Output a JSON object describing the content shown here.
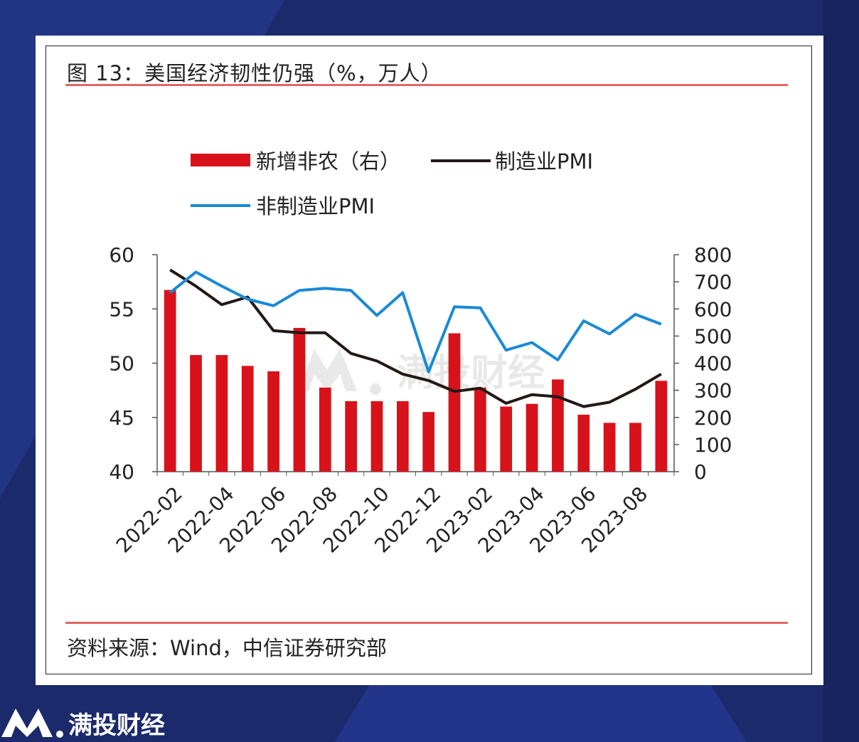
{
  "figure_title": "图 13：美国经济韧性仍强（%，万人）",
  "source_note": "资料来源：Wind，中信证券研究部",
  "watermark_text": "满投财经",
  "brand_name": "满投财经",
  "colors": {
    "background": "#1b2a6b",
    "bar": "#d7121b",
    "manufacturing": "#231815",
    "non_manufacturing": "#1a8ad4",
    "rule": "#e06666"
  },
  "icons": {
    "brand_logo": "mountain-logo-icon",
    "watermark_logo": "mountain-logo-icon"
  },
  "chart_data": {
    "type": "bar+line",
    "x_tick_labels": [
      "2022-02",
      "2022-04",
      "2022-06",
      "2022-08",
      "2022-10",
      "2022-12",
      "2023-02",
      "2023-04",
      "2023-06",
      "2023-08"
    ],
    "months": [
      "2022-02",
      "2022-03",
      "2022-04",
      "2022-05",
      "2022-06",
      "2022-07",
      "2022-08",
      "2022-09",
      "2022-10",
      "2022-11",
      "2022-12",
      "2023-01",
      "2023-02",
      "2023-03",
      "2023-04",
      "2023-05",
      "2023-06",
      "2023-07",
      "2023-08",
      "2023-09"
    ],
    "left_axis": {
      "ticks": [
        40,
        45,
        50,
        55,
        60
      ],
      "range": [
        40,
        60
      ]
    },
    "right_axis": {
      "ticks": [
        0,
        100,
        200,
        300,
        400,
        500,
        600,
        700,
        800
      ],
      "range": [
        0,
        800
      ]
    },
    "legend_position": "top",
    "series": [
      {
        "name": "新增非农（右）",
        "kind": "bar",
        "axis": "right",
        "values": [
          670,
          430,
          430,
          390,
          370,
          530,
          310,
          260,
          260,
          260,
          220,
          510,
          310,
          240,
          250,
          340,
          210,
          180,
          180,
          335
        ]
      },
      {
        "name": "制造业PMI",
        "kind": "line",
        "axis": "left",
        "values": [
          58.6,
          57.1,
          55.4,
          56.1,
          53.0,
          52.8,
          52.8,
          50.9,
          50.2,
          49.0,
          48.4,
          47.4,
          47.7,
          46.3,
          47.1,
          46.9,
          46.0,
          46.4,
          47.6,
          49.0
        ]
      },
      {
        "name": "非制造业PMI",
        "kind": "line",
        "axis": "left",
        "values": [
          56.5,
          58.4,
          57.1,
          55.9,
          55.3,
          56.7,
          56.9,
          56.7,
          54.4,
          56.5,
          49.2,
          55.2,
          55.1,
          51.2,
          51.9,
          50.3,
          53.9,
          52.7,
          54.5,
          53.6
        ]
      }
    ]
  }
}
